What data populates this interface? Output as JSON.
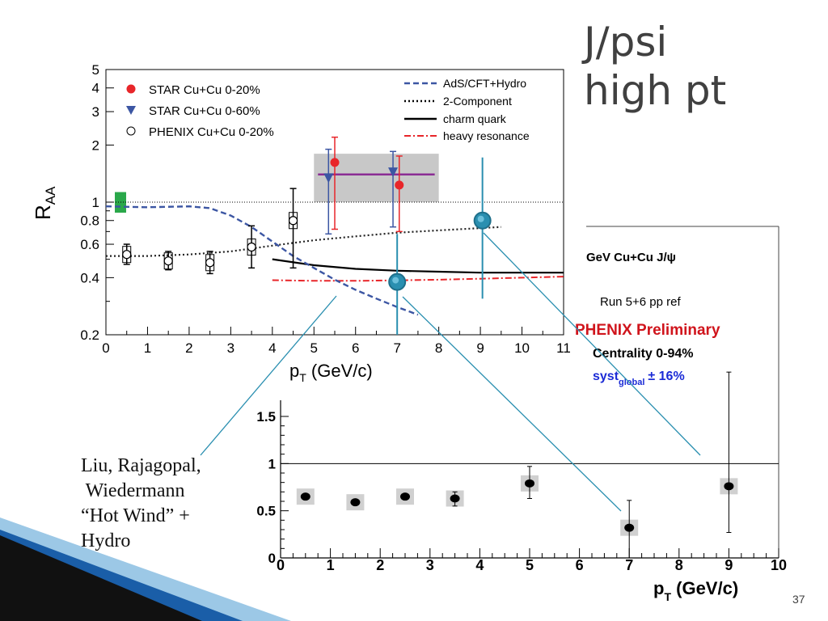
{
  "slide": {
    "title": "J/psi\nhigh pt",
    "caption": "Liu, Rajagopal,\n Wiedermann\n“Hot Wind” +\nHydro",
    "page_number": "37"
  },
  "colors": {
    "red": "#e8262a",
    "blue": "#3c56a3",
    "teal": "#2a8fb0",
    "band": "#c8c8c8",
    "purple": "#8b2d94",
    "green": "#2aa84a",
    "dark_red": "#d0141c",
    "dark_blue": "#1b2bd6",
    "ribbon": "#1a5ea8"
  },
  "chart_data": [
    {
      "type": "scatter",
      "ylabel": "R",
      "ylabel_sub": "AA",
      "xlabel": "p",
      "xlabel_sub": "T",
      "xlabel_rest": " (GeV/c)",
      "xlim": [
        0,
        11
      ],
      "ylim": [
        0.2,
        5
      ],
      "yscale": "log",
      "xticks": [
        "0",
        "1",
        "2",
        "3",
        "4",
        "5",
        "6",
        "7",
        "8",
        "9",
        "10",
        "11"
      ],
      "yticks": [
        {
          "v": 0.2,
          "l": "0.2"
        },
        {
          "v": 0.4,
          "l": "0.4"
        },
        {
          "v": 0.6,
          "l": "0.6"
        },
        {
          "v": 0.8,
          "l": "0.8"
        },
        {
          "v": 1,
          "l": "1"
        },
        {
          "v": 2,
          "l": "2"
        },
        {
          "v": 3,
          "l": "3"
        },
        {
          "v": 4,
          "l": "4"
        },
        {
          "v": 5,
          "l": "5"
        }
      ],
      "legend_markers": [
        {
          "label": "STAR Cu+Cu 0-20%",
          "marker": "circle-red"
        },
        {
          "label": "STAR Cu+Cu 0-60%",
          "marker": "triangle-blue"
        },
        {
          "label": "PHENIX Cu+Cu 0-20%",
          "marker": "circle-open"
        }
      ],
      "legend_lines": [
        {
          "label": "AdS/CFT+Hydro",
          "style": "dashed-blue"
        },
        {
          "label": "2-Component",
          "style": "dotted-black"
        },
        {
          "label": "charm quark",
          "style": "solid-black"
        },
        {
          "label": "heavy resonance",
          "style": "dashdot-red"
        }
      ],
      "series": [
        {
          "name": "PHENIX Cu+Cu 0-20%",
          "marker": "open-circle",
          "points": [
            {
              "x": 0.5,
              "y": 0.53,
              "lo": 0.47,
              "hi": 0.6
            },
            {
              "x": 1.5,
              "y": 0.49,
              "lo": 0.44,
              "hi": 0.55
            },
            {
              "x": 2.5,
              "y": 0.48,
              "lo": 0.42,
              "hi": 0.55
            },
            {
              "x": 3.5,
              "y": 0.58,
              "lo": 0.45,
              "hi": 0.75
            },
            {
              "x": 4.5,
              "y": 0.8,
              "lo": 0.45,
              "hi": 1.18
            }
          ]
        },
        {
          "name": "STAR Cu+Cu 0-20%",
          "marker": "red-circle",
          "points": [
            {
              "x": 5.5,
              "y": 1.62,
              "lo": 0.72,
              "hi": 2.2
            },
            {
              "x": 7.05,
              "y": 1.23,
              "lo": 0.7,
              "hi": 1.75
            }
          ]
        },
        {
          "name": "STAR Cu+Cu 0-60%",
          "marker": "blue-triangle",
          "points": [
            {
              "x": 5.35,
              "y": 1.35,
              "lo": 0.68,
              "hi": 1.9
            },
            {
              "x": 6.9,
              "y": 1.45,
              "lo": 0.74,
              "hi": 1.85
            }
          ]
        }
      ],
      "overlay_points": [
        {
          "x": 7.0,
          "y": 0.38,
          "lo": 0.2,
          "hi": 0.68
        },
        {
          "x": 9.05,
          "y": 0.8,
          "lo": 0.31,
          "hi": 1.72
        }
      ],
      "star_band": {
        "x0": 5.0,
        "x1": 8.0,
        "y0": 1.0,
        "y1": 1.8,
        "level": 1.4
      },
      "global_box": {
        "x": 0.35,
        "y0": 0.88,
        "y1": 1.13
      },
      "curves": {
        "ads_cft_hydro": [
          [
            0,
            0.95
          ],
          [
            1,
            0.94
          ],
          [
            2,
            0.95
          ],
          [
            2.5,
            0.93
          ],
          [
            3,
            0.85
          ],
          [
            3.5,
            0.74
          ],
          [
            4,
            0.62
          ],
          [
            4.5,
            0.52
          ],
          [
            5,
            0.45
          ],
          [
            5.5,
            0.39
          ],
          [
            6,
            0.345
          ],
          [
            6.5,
            0.31
          ],
          [
            7,
            0.28
          ],
          [
            7.5,
            0.255
          ]
        ],
        "two_component": [
          [
            0,
            0.52
          ],
          [
            1,
            0.52
          ],
          [
            2,
            0.53
          ],
          [
            3,
            0.55
          ],
          [
            4,
            0.59
          ],
          [
            5,
            0.63
          ],
          [
            6,
            0.66
          ],
          [
            7,
            0.69
          ],
          [
            8,
            0.71
          ],
          [
            9,
            0.73
          ],
          [
            9.5,
            0.74
          ]
        ],
        "charm_quark": [
          [
            4,
            0.5
          ],
          [
            5,
            0.465
          ],
          [
            6,
            0.445
          ],
          [
            7,
            0.435
          ],
          [
            8,
            0.43
          ],
          [
            9,
            0.425
          ],
          [
            10,
            0.425
          ],
          [
            11,
            0.425
          ]
        ],
        "heavy_resonance": [
          [
            4,
            0.388
          ],
          [
            5,
            0.385
          ],
          [
            6,
            0.385
          ],
          [
            7,
            0.387
          ],
          [
            8,
            0.39
          ],
          [
            9,
            0.395
          ],
          [
            10,
            0.4
          ],
          [
            11,
            0.405
          ]
        ]
      }
    },
    {
      "type": "scatter",
      "xlabel": "p",
      "xlabel_sub": "T",
      "xlabel_rest": " (GeV/c)",
      "xlim": [
        0,
        10
      ],
      "ylim": [
        0,
        1.5
      ],
      "xticks": [
        "0",
        "1",
        "2",
        "3",
        "4",
        "5",
        "6",
        "7",
        "8",
        "9",
        "10"
      ],
      "yticks": [
        {
          "v": 0,
          "l": "0"
        },
        {
          "v": 0.5,
          "l": "0.5"
        },
        {
          "v": 1,
          "l": "1"
        },
        {
          "v": 1.5,
          "l": "1.5"
        }
      ],
      "legend": {
        "line1": "GeV Cu+Cu J/ψ",
        "line2": "Run 5+6 pp ref",
        "line3": "PHENIX Preliminary",
        "line4": "Centrality 0-94%",
        "syst_main": "syst",
        "syst_sub": "global",
        "syst_value": "± 16%"
      },
      "points": [
        {
          "x": 0.5,
          "y": 0.65,
          "lo": 0.65,
          "hi": 0.65
        },
        {
          "x": 1.5,
          "y": 0.59,
          "lo": 0.59,
          "hi": 0.59
        },
        {
          "x": 2.5,
          "y": 0.65,
          "lo": 0.65,
          "hi": 0.65
        },
        {
          "x": 3.5,
          "y": 0.63,
          "lo": 0.55,
          "hi": 0.7
        },
        {
          "x": 5.0,
          "y": 0.79,
          "lo": 0.63,
          "hi": 0.97
        },
        {
          "x": 7.0,
          "y": 0.32,
          "lo": 0.0,
          "hi": 0.61
        },
        {
          "x": 9.0,
          "y": 0.76,
          "lo": 0.27,
          "hi": 1.97
        }
      ]
    }
  ]
}
